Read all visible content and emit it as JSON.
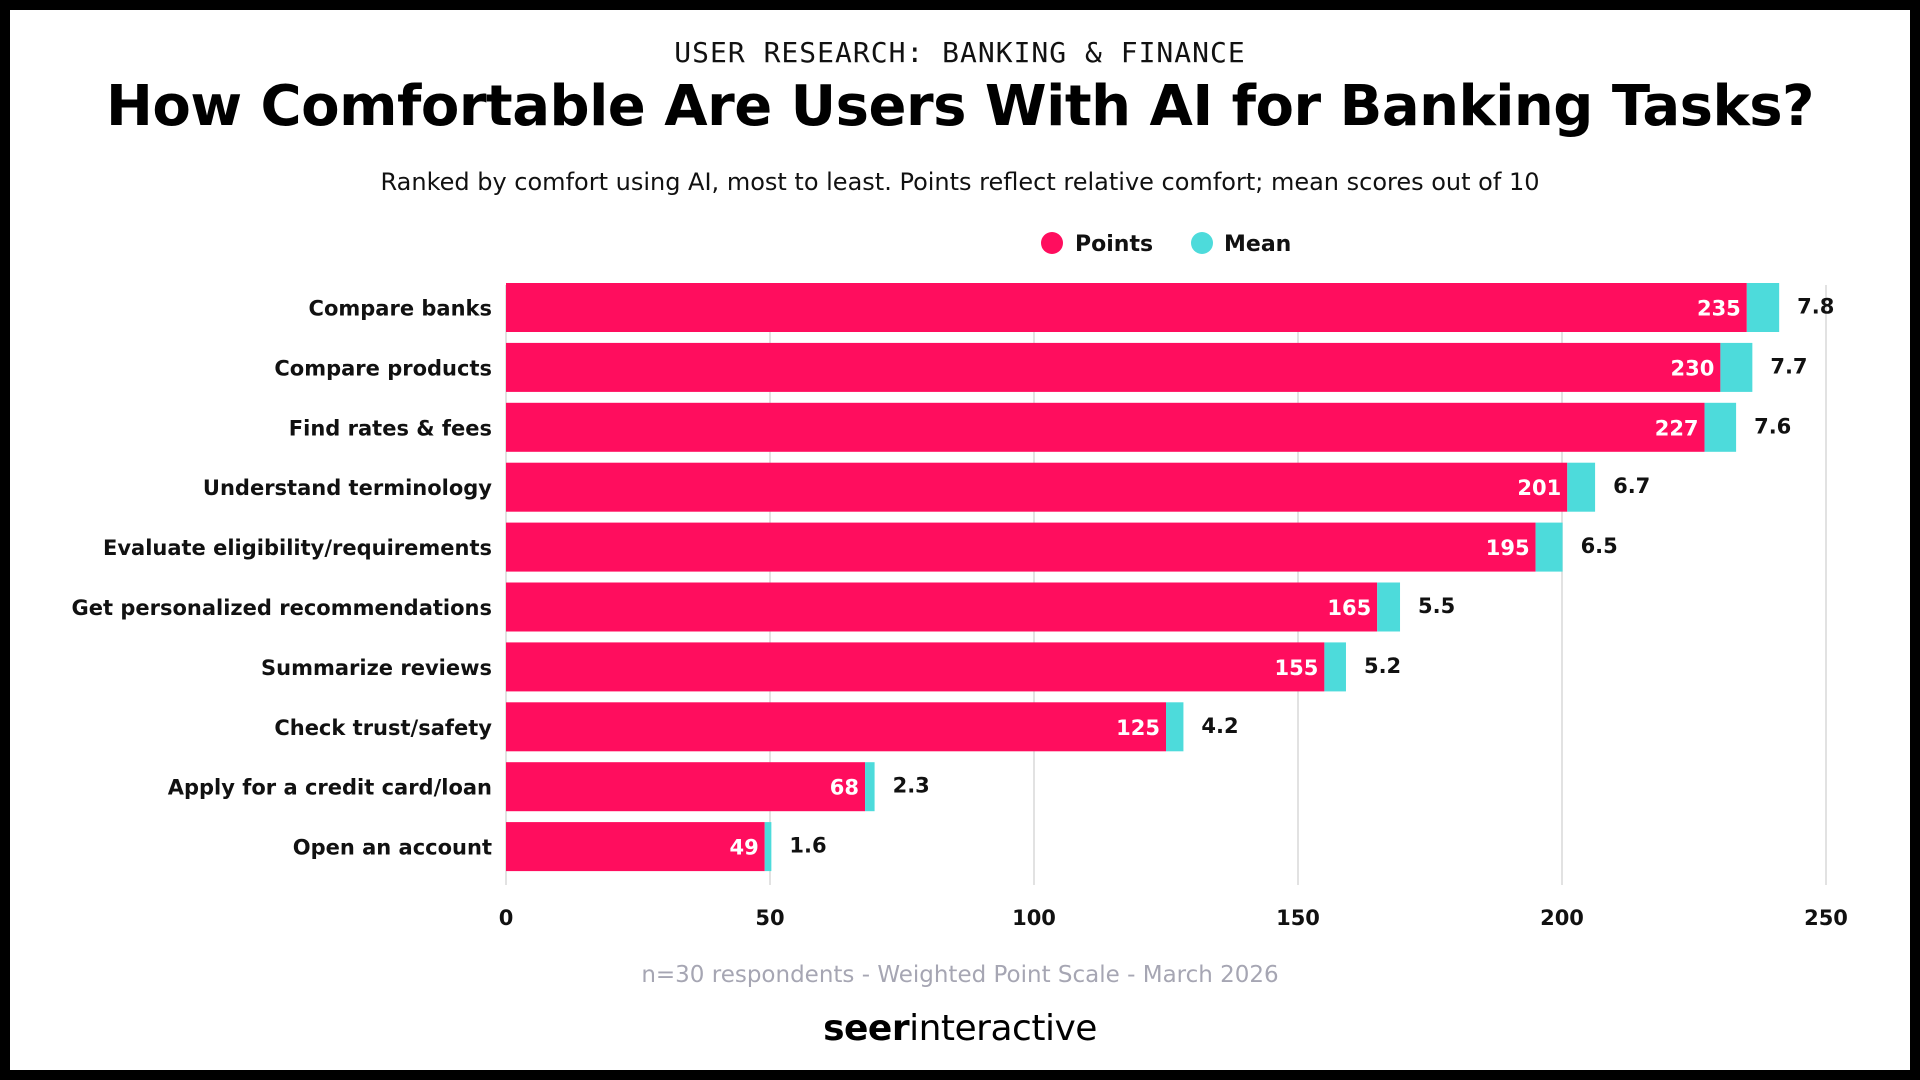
{
  "header": {
    "kicker": "USER RESEARCH: BANKING & FINANCE",
    "title": "How Comfortable Are Users With AI for Banking Tasks?",
    "subtitle": "Ranked by comfort using AI, most to least. Points reflect relative comfort; mean scores out of 10"
  },
  "footer": {
    "note": "n=30 respondents - Weighted Point Scale - March 2026",
    "brand_strong": "seer",
    "brand_light": "interactive"
  },
  "colors": {
    "points": "#ff0d5e",
    "mean": "#4ddbdb",
    "grid": "#d9d9d9",
    "text": "#111111"
  },
  "chart_data": {
    "type": "bar",
    "orientation": "horizontal",
    "stacked": true,
    "categories": [
      "Compare banks",
      "Compare products",
      "Find rates & fees",
      "Understand terminology",
      "Evaluate eligibility/requirements",
      "Get personalized recommendations",
      "Summarize reviews",
      "Check trust/safety",
      "Apply for a credit card/loan",
      "Open an account"
    ],
    "series": [
      {
        "name": "Points",
        "values": [
          235,
          230,
          227,
          201,
          195,
          165,
          155,
          125,
          68,
          49
        ]
      },
      {
        "name": "Mean",
        "values": [
          7.8,
          7.7,
          7.6,
          6.7,
          6.5,
          5.5,
          5.2,
          4.2,
          2.3,
          1.6
        ]
      }
    ],
    "xlim": [
      0,
      250
    ],
    "xticks": [
      0,
      50,
      100,
      150,
      200,
      250
    ],
    "grid": true,
    "legend_position": "top-center"
  }
}
